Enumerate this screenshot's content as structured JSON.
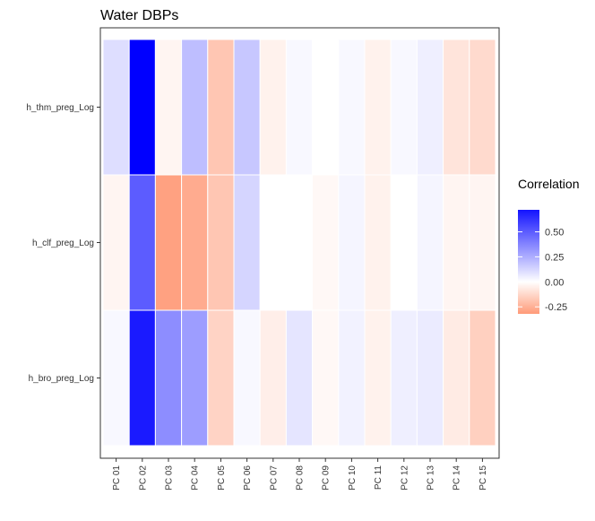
{
  "chart_data": {
    "type": "heatmap",
    "title": "Water DBPs",
    "xlabel": "",
    "ylabel": "",
    "x": [
      "PC 01",
      "PC 02",
      "PC 03",
      "PC 04",
      "PC 05",
      "PC 06",
      "PC 07",
      "PC 08",
      "PC 09",
      "PC 10",
      "PC 11",
      "PC 12",
      "PC 13",
      "PC 14",
      "PC 15"
    ],
    "y": [
      "h_thm_preg_Log",
      "h_clf_preg_Log",
      "h_bro_preg_Log"
    ],
    "values": [
      [
        0.1,
        0.78,
        -0.03,
        0.2,
        -0.17,
        0.17,
        -0.04,
        0.02,
        0.0,
        0.02,
        -0.04,
        0.02,
        0.05,
        -0.08,
        -0.11
      ],
      [
        -0.03,
        0.5,
        -0.28,
        -0.25,
        -0.17,
        0.13,
        0.0,
        0.0,
        -0.02,
        0.03,
        -0.04,
        0.0,
        0.03,
        -0.03,
        -0.03
      ],
      [
        0.02,
        0.7,
        0.35,
        0.3,
        -0.13,
        0.02,
        -0.05,
        0.08,
        -0.02,
        0.04,
        -0.04,
        0.05,
        0.06,
        -0.06,
        -0.14
      ]
    ],
    "color_scale": {
      "low": "#ff9a78",
      "mid": "#ffffff",
      "high": "#0000ff",
      "range": [
        -0.3,
        0.78
      ]
    },
    "legend": {
      "title": "Correlation",
      "position": "right",
      "ticks": [
        {
          "value": 0.5,
          "label": "0.50"
        },
        {
          "value": 0.25,
          "label": "0.25"
        },
        {
          "value": 0.0,
          "label": "0.00"
        },
        {
          "value": -0.25,
          "label": "-0.25"
        }
      ]
    },
    "grid": false
  }
}
